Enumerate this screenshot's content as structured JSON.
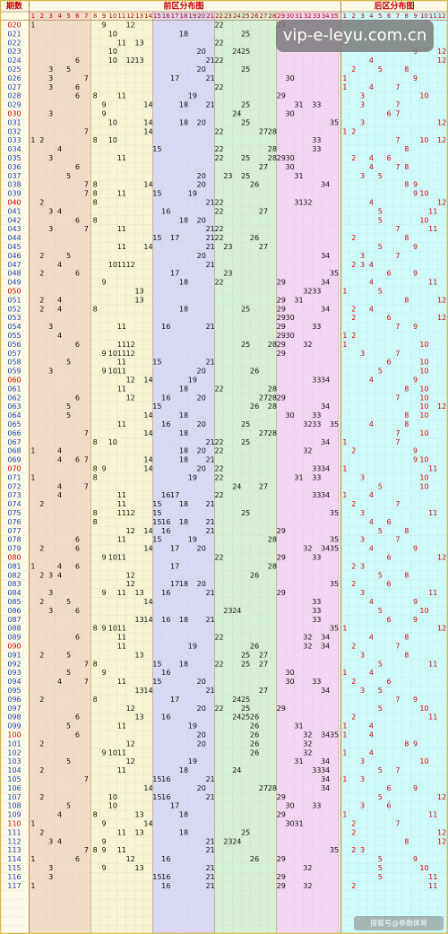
{
  "header": {
    "period": "期数",
    "front": "前区分布图",
    "back": "后区分布图"
  },
  "watermark": "vip-e-leyu.com.cn",
  "footer": "搜狐号@参数体育",
  "front_columns": [
    1,
    2,
    3,
    4,
    5,
    6,
    7,
    8,
    9,
    10,
    11,
    12,
    13,
    14,
    15,
    16,
    17,
    18,
    19,
    20,
    21,
    22,
    23,
    24,
    25,
    26,
    27,
    28,
    29,
    30,
    31,
    32,
    33,
    34,
    35
  ],
  "back_columns": [
    1,
    2,
    3,
    4,
    5,
    6,
    7,
    8,
    9,
    10,
    11,
    12
  ],
  "rows": [
    {
      "period": "020",
      "front": [
        1,
        9,
        12,
        22,
        29
      ],
      "back": []
    },
    {
      "period": "021",
      "front": [
        10,
        18,
        25
      ],
      "back": []
    },
    {
      "period": "022",
      "front": [
        11,
        13,
        22
      ],
      "back": []
    },
    {
      "period": "023",
      "front": [
        10,
        20,
        24,
        25
      ],
      "back": [
        9,
        12
      ]
    },
    {
      "period": "024",
      "front": [
        6,
        10,
        12,
        13,
        21,
        22
      ],
      "back": [
        4,
        12
      ]
    },
    {
      "period": "025",
      "front": [
        3,
        5,
        20,
        25
      ],
      "back": [
        2,
        5,
        8
      ]
    },
    {
      "period": "026",
      "front": [
        3,
        7,
        17,
        21,
        30
      ],
      "back": [
        1,
        9
      ]
    },
    {
      "period": "027",
      "front": [
        3,
        6,
        22
      ],
      "back": [
        1,
        4,
        7
      ]
    },
    {
      "period": "028",
      "front": [
        6,
        8,
        11,
        19,
        29
      ],
      "back": [
        3,
        10
      ]
    },
    {
      "period": "029",
      "front": [
        9,
        14,
        18,
        21,
        25,
        31,
        33
      ],
      "back": [
        3,
        7
      ]
    },
    {
      "period": "030",
      "front": [
        3,
        9,
        24,
        30
      ],
      "back": [
        6,
        7
      ]
    },
    {
      "period": "031",
      "front": [
        10,
        14,
        18,
        20,
        25,
        35
      ],
      "back": [
        3,
        12
      ]
    },
    {
      "period": "032",
      "front": [
        7,
        14,
        22,
        27,
        28
      ],
      "back": [
        1,
        2
      ]
    },
    {
      "period": "033",
      "front": [
        1,
        2,
        8,
        10,
        33
      ],
      "back": [
        7,
        10,
        12
      ]
    },
    {
      "period": "034",
      "front": [
        4,
        15,
        22,
        28,
        33
      ],
      "back": [
        8
      ]
    },
    {
      "period": "035",
      "front": [
        3,
        11,
        22,
        25,
        28,
        29,
        30
      ],
      "back": [
        2,
        4,
        6
      ]
    },
    {
      "period": "036",
      "front": [
        6,
        27,
        30
      ],
      "back": [
        4,
        7,
        8
      ]
    },
    {
      "period": "037",
      "front": [
        5,
        20,
        23,
        25,
        31
      ],
      "back": [
        3,
        5
      ]
    },
    {
      "period": "038",
      "front": [
        7,
        8,
        14,
        20,
        26,
        34
      ],
      "back": [
        8,
        9
      ]
    },
    {
      "period": "039",
      "front": [
        7,
        8,
        11,
        15,
        19
      ],
      "back": [
        9,
        10
      ]
    },
    {
      "period": "040",
      "front": [
        2,
        8,
        21,
        22,
        31,
        32
      ],
      "back": [
        4,
        12
      ]
    },
    {
      "period": "041",
      "front": [
        3,
        4,
        16,
        22,
        27
      ],
      "back": [
        5,
        11
      ]
    },
    {
      "period": "042",
      "front": [
        6,
        8,
        18,
        20
      ],
      "back": [
        5,
        10
      ]
    },
    {
      "period": "043",
      "front": [
        3,
        7,
        11,
        21,
        22
      ],
      "back": [
        7,
        11
      ]
    },
    {
      "period": "044",
      "front": [
        15,
        17,
        21,
        22,
        26
      ],
      "back": [
        2,
        8
      ]
    },
    {
      "period": "045",
      "front": [
        11,
        14,
        21,
        23,
        27
      ],
      "back": [
        5,
        9
      ]
    },
    {
      "period": "046",
      "front": [
        2,
        5,
        20,
        34
      ],
      "back": [
        3,
        7
      ]
    },
    {
      "period": "047",
      "front": [
        4,
        10,
        11,
        12,
        21
      ],
      "back": [
        2,
        3,
        4
      ]
    },
    {
      "period": "048",
      "front": [
        2,
        6,
        17,
        23,
        35
      ],
      "back": [
        6,
        9
      ]
    },
    {
      "period": "049",
      "front": [
        9,
        18,
        22,
        29,
        34
      ],
      "back": [
        4,
        11
      ]
    },
    {
      "period": "050",
      "front": [
        13,
        32,
        33
      ],
      "back": [
        1,
        5
      ]
    },
    {
      "period": "051",
      "front": [
        2,
        4,
        13,
        29,
        31
      ],
      "back": [
        8,
        12
      ]
    },
    {
      "period": "052",
      "front": [
        2,
        4,
        8,
        18,
        25,
        29,
        34
      ],
      "back": [
        2,
        4
      ]
    },
    {
      "period": "053",
      "front": [
        29,
        30
      ],
      "back": [
        2,
        6,
        12
      ]
    },
    {
      "period": "054",
      "front": [
        3,
        11,
        16,
        21,
        29,
        33
      ],
      "back": [
        7,
        9
      ]
    },
    {
      "period": "055",
      "front": [
        4,
        29,
        30
      ],
      "back": [
        1,
        2
      ]
    },
    {
      "period": "056",
      "front": [
        6,
        11,
        12,
        25,
        28,
        29,
        32
      ],
      "back": [
        1,
        10
      ]
    },
    {
      "period": "057",
      "front": [
        9,
        10,
        11,
        12,
        29
      ],
      "back": [
        3,
        7
      ]
    },
    {
      "period": "058",
      "front": [
        5,
        11,
        15,
        21
      ],
      "back": [
        6,
        10
      ]
    },
    {
      "period": "059",
      "front": [
        3,
        9,
        10,
        11,
        20,
        26
      ],
      "back": [
        5,
        10
      ]
    },
    {
      "period": "060",
      "front": [
        12,
        14,
        19,
        33,
        34
      ],
      "back": [
        4,
        9
      ]
    },
    {
      "period": "061",
      "front": [
        11,
        18,
        22,
        28
      ],
      "back": [
        8,
        10
      ]
    },
    {
      "period": "062",
      "front": [
        6,
        12,
        16,
        20,
        27,
        28,
        29
      ],
      "back": [
        7,
        10
      ]
    },
    {
      "period": "063",
      "front": [
        5,
        15,
        26,
        28,
        34
      ],
      "back": [
        10,
        12
      ]
    },
    {
      "period": "064",
      "front": [
        5,
        14,
        18,
        30,
        33
      ],
      "back": [
        8,
        10
      ]
    },
    {
      "period": "065",
      "front": [
        11,
        16,
        20,
        25,
        32,
        33,
        35
      ],
      "back": [
        4,
        8
      ]
    },
    {
      "period": "066",
      "front": [
        7,
        14,
        18,
        27,
        28
      ],
      "back": [
        7,
        10
      ]
    },
    {
      "period": "067",
      "front": [
        8,
        10,
        21,
        22,
        25,
        34
      ],
      "back": [
        1,
        7
      ]
    },
    {
      "period": "068",
      "front": [
        1,
        4,
        18,
        20,
        22,
        32
      ],
      "back": [
        2,
        9
      ]
    },
    {
      "period": "069",
      "front": [
        4,
        6,
        7,
        14,
        18,
        21
      ],
      "back": [
        9,
        10
      ]
    },
    {
      "period": "070",
      "front": [
        8,
        9,
        14,
        20,
        22,
        33,
        34
      ],
      "back": [
        1,
        11
      ]
    },
    {
      "period": "071",
      "front": [
        1,
        8,
        19,
        22,
        31,
        33
      ],
      "back": [
        3,
        10
      ]
    },
    {
      "period": "072",
      "front": [
        4,
        7,
        24,
        27
      ],
      "back": [
        5,
        10
      ]
    },
    {
      "period": "073",
      "front": [
        4,
        11,
        16,
        17,
        22,
        33,
        34
      ],
      "back": [
        1,
        4
      ]
    },
    {
      "period": "074",
      "front": [
        2,
        11,
        15,
        18,
        21
      ],
      "back": [
        2,
        7
      ]
    },
    {
      "period": "075",
      "front": [
        8,
        11,
        12,
        15,
        25,
        35
      ],
      "back": [
        3,
        11
      ]
    },
    {
      "period": "076",
      "front": [
        8,
        15,
        16,
        18,
        21
      ],
      "back": [
        4,
        6
      ]
    },
    {
      "period": "077",
      "front": [
        12,
        14,
        16,
        21,
        29
      ],
      "back": [
        5,
        8
      ]
    },
    {
      "period": "078",
      "front": [
        6,
        11,
        15,
        19,
        28,
        35
      ],
      "back": [
        3,
        7
      ]
    },
    {
      "period": "079",
      "front": [
        2,
        6,
        14,
        17,
        20,
        32,
        34,
        35
      ],
      "back": [
        4,
        9
      ]
    },
    {
      "period": "080",
      "front": [
        9,
        10,
        11,
        22,
        29,
        33
      ],
      "back": [
        6,
        12
      ]
    },
    {
      "period": "081",
      "front": [
        1,
        4,
        6,
        17,
        28
      ],
      "back": [
        2,
        3
      ]
    },
    {
      "period": "082",
      "front": [
        2,
        3,
        4,
        12,
        26
      ],
      "back": [
        5,
        8
      ]
    },
    {
      "period": "083",
      "front": [
        12,
        17,
        18,
        20,
        35
      ],
      "back": [
        2,
        6
      ]
    },
    {
      "period": "084",
      "front": [
        3,
        9,
        11,
        13,
        16,
        21,
        29
      ],
      "back": [
        3,
        11
      ]
    },
    {
      "period": "085",
      "front": [
        2,
        5,
        14,
        33
      ],
      "back": [
        4,
        9
      ]
    },
    {
      "period": "086",
      "front": [
        3,
        6,
        23,
        24,
        33
      ],
      "back": [
        5,
        10
      ]
    },
    {
      "period": "087",
      "front": [
        13,
        14,
        16,
        18,
        21,
        33
      ],
      "back": [
        6,
        9
      ]
    },
    {
      "period": "088",
      "front": [
        8,
        9,
        10,
        11,
        35
      ],
      "back": [
        1,
        12
      ]
    },
    {
      "period": "089",
      "front": [
        6,
        11,
        22,
        32,
        34
      ],
      "back": [
        4,
        8
      ]
    },
    {
      "period": "090",
      "front": [
        11,
        19,
        26,
        32,
        34
      ],
      "back": [
        2,
        7
      ]
    },
    {
      "period": "091",
      "front": [
        2,
        5,
        13,
        25,
        27
      ],
      "back": [
        3,
        8
      ]
    },
    {
      "period": "092",
      "front": [
        7,
        8,
        15,
        18,
        22,
        25,
        27
      ],
      "back": [
        5,
        11
      ]
    },
    {
      "period": "093",
      "front": [
        5,
        9,
        16,
        30
      ],
      "back": [
        1,
        4
      ]
    },
    {
      "period": "094",
      "front": [
        4,
        7,
        11,
        15,
        20,
        30,
        33
      ],
      "back": [
        2,
        6
      ]
    },
    {
      "period": "095",
      "front": [
        13,
        14,
        21,
        27,
        34
      ],
      "back": [
        3,
        5
      ]
    },
    {
      "period": "096",
      "front": [
        2,
        8,
        17,
        24,
        25
      ],
      "back": [
        7,
        9
      ]
    },
    {
      "period": "097",
      "front": [
        12,
        20,
        22,
        25,
        29
      ],
      "back": [
        5,
        10
      ]
    },
    {
      "period": "098",
      "front": [
        6,
        13,
        16,
        24,
        25,
        26
      ],
      "back": [
        2,
        11
      ]
    },
    {
      "period": "099",
      "front": [
        5,
        11,
        19,
        26,
        31
      ],
      "back": [
        1,
        4
      ]
    },
    {
      "period": "100",
      "front": [
        6,
        20,
        26,
        32,
        34,
        35
      ],
      "back": [
        1,
        4
      ]
    },
    {
      "period": "101",
      "front": [
        2,
        12,
        20,
        26,
        32
      ],
      "back": [
        8,
        9
      ]
    },
    {
      "period": "102",
      "front": [
        9,
        10,
        11,
        26,
        32
      ],
      "back": [
        1,
        4
      ]
    },
    {
      "period": "103",
      "front": [
        5,
        12,
        19,
        31,
        34
      ],
      "back": [
        3,
        10
      ]
    },
    {
      "period": "104",
      "front": [
        2,
        11,
        18,
        24,
        33,
        34
      ],
      "back": [
        5,
        7
      ]
    },
    {
      "period": "105",
      "front": [
        7,
        15,
        16,
        21,
        34
      ],
      "back": [
        1,
        3
      ]
    },
    {
      "period": "106",
      "front": [
        14,
        20,
        27,
        28,
        34
      ],
      "back": [
        6,
        9
      ]
    },
    {
      "period": "107",
      "front": [
        2,
        10,
        15,
        16,
        21,
        29
      ],
      "back": [
        5,
        12
      ]
    },
    {
      "period": "108",
      "front": [
        5,
        10,
        17,
        30,
        33
      ],
      "back": [
        3,
        6
      ]
    },
    {
      "period": "109",
      "front": [
        4,
        8,
        13,
        18,
        29
      ],
      "back": [
        1,
        11
      ]
    },
    {
      "period": "110",
      "front": [
        1,
        9,
        14,
        30,
        31
      ],
      "back": [
        2,
        7
      ]
    },
    {
      "period": "111",
      "front": [
        2,
        11,
        13,
        18,
        25
      ],
      "back": [
        2,
        12
      ]
    },
    {
      "period": "112",
      "front": [
        3,
        4,
        9,
        21,
        23,
        24
      ],
      "back": [
        8,
        12
      ]
    },
    {
      "period": "113",
      "front": [
        7,
        8,
        9,
        11,
        21,
        35
      ],
      "back": [
        2,
        3
      ]
    },
    {
      "period": "114",
      "front": [
        1,
        6,
        12,
        16,
        26,
        29
      ],
      "back": [
        5,
        9
      ]
    },
    {
      "period": "115",
      "front": [
        3,
        9,
        13,
        21,
        32
      ],
      "back": [
        5,
        10
      ]
    },
    {
      "period": "116",
      "front": [
        3,
        15,
        16,
        21,
        29
      ],
      "back": [
        5,
        11
      ]
    },
    {
      "period": "117",
      "front": [
        1,
        16,
        21,
        29,
        32
      ],
      "back": [
        2,
        11
      ]
    }
  ]
}
